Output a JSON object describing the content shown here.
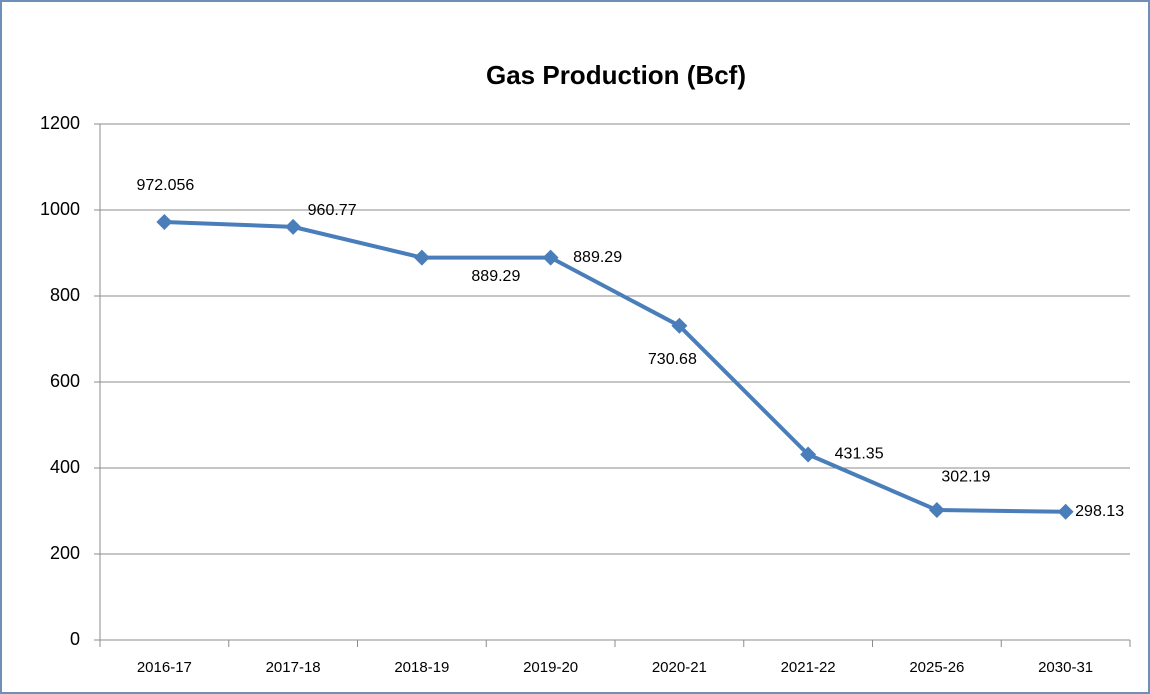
{
  "chart_data": {
    "type": "line",
    "title": "Gas Production (Bcf)",
    "categories": [
      "2016-17",
      "2017-18",
      "2018-19",
      "2019-20",
      "2020-21",
      "2021-22",
      "2025-26",
      "2030-31"
    ],
    "values": [
      972.056,
      960.77,
      889.29,
      889.29,
      730.68,
      431.35,
      302.19,
      298.13
    ],
    "color": "#4a7ebb",
    "ylim": [
      0,
      1200
    ],
    "yticks": [
      0,
      200,
      400,
      600,
      800,
      1000,
      1200
    ],
    "grid": true
  }
}
